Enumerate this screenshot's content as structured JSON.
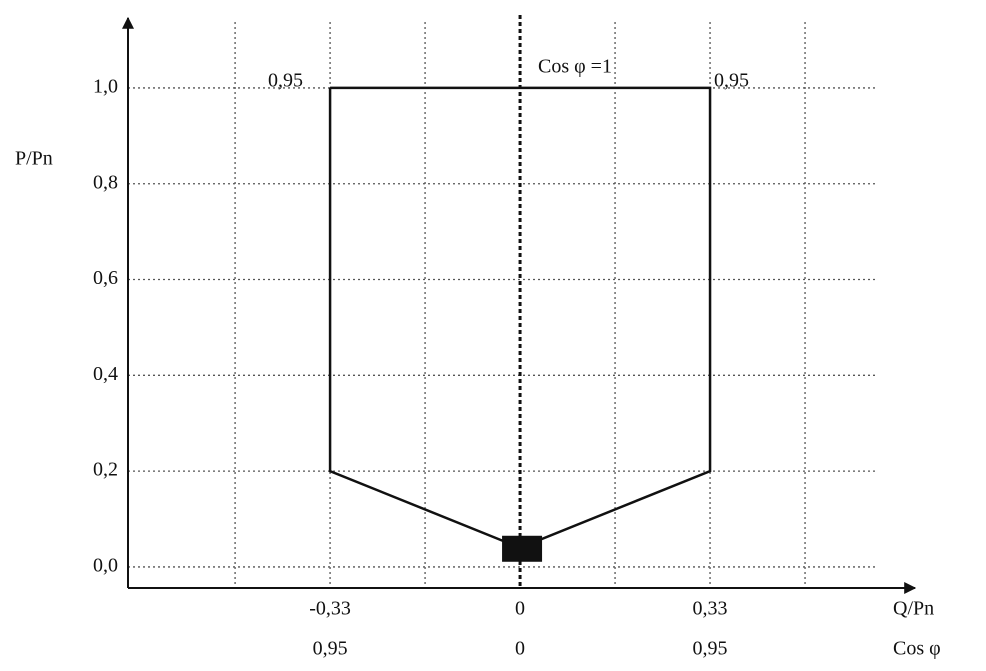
{
  "chart_data": {
    "type": "line",
    "x_label": "Q/Pn",
    "x2_label": "Cos φ",
    "y_label": "P/Pn",
    "annotations": [
      "Cos φ =1",
      "0,95",
      "0,95"
    ],
    "xlim": [
      -0.681,
      0.686
    ],
    "ylim": [
      -0.044,
      1.146
    ],
    "xticks": [
      {
        "value": -0.33,
        "label": "-0,33"
      },
      0,
      {
        "value": 0.33,
        "label": "0,33"
      }
    ],
    "x2_tick_labels": [
      "0,95",
      "0",
      "0,95"
    ],
    "xgrid": [
      -0.495,
      -0.33,
      -0.165,
      0.165,
      0.33,
      0.495
    ],
    "yticks": [
      {
        "value": 0,
        "label": "0,0"
      },
      {
        "value": 0.2,
        "label": "0,2"
      },
      {
        "value": 0.4,
        "label": "0,4"
      },
      {
        "value": 0.6,
        "label": "0,6"
      },
      {
        "value": 0.8,
        "label": "0,8"
      },
      {
        "value": 1,
        "label": "1,0"
      }
    ],
    "grid": true,
    "series": [
      {
        "color": "#111111",
        "x": [
          -0.33,
          -0.33,
          0,
          0.33,
          0.33,
          -0.33
        ],
        "y": [
          1,
          0.2,
          0.04,
          0.2,
          1,
          1
        ]
      }
    ]
  }
}
